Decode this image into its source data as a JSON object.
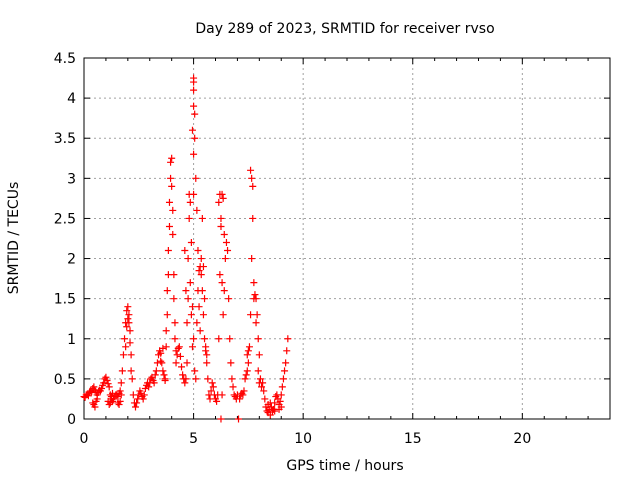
{
  "chart_data": {
    "type": "scatter",
    "title": "Day 289 of 2023, SRMTID for receiver rvso",
    "xlabel": "GPS time / hours",
    "ylabel": "SRMTID / TECUs",
    "xlim": [
      0,
      24
    ],
    "ylim": [
      0,
      4.5
    ],
    "xticks": [
      0,
      5,
      10,
      15,
      20
    ],
    "xtick_labels": [
      "0",
      "5",
      "10",
      "15",
      "20"
    ],
    "yticks": [
      0,
      0.5,
      1,
      1.5,
      2,
      2.5,
      3,
      3.5,
      4,
      4.5
    ],
    "ytick_labels": [
      "0",
      "0.5",
      "1",
      "1.5",
      "2",
      "2.5",
      "3",
      "3.5",
      "4",
      "4.5"
    ],
    "grid": true,
    "marker": "plus",
    "marker_color": "#ff0000",
    "series": [
      {
        "points": [
          [
            0.0,
            0.28
          ],
          [
            0.05,
            0.27
          ],
          [
            0.1,
            0.3
          ],
          [
            0.15,
            0.31
          ],
          [
            0.2,
            0.29
          ],
          [
            0.25,
            0.33
          ],
          [
            0.3,
            0.35
          ],
          [
            0.35,
            0.34
          ],
          [
            0.4,
            0.38
          ],
          [
            0.45,
            0.4
          ],
          [
            0.5,
            0.36
          ],
          [
            0.55,
            0.33
          ],
          [
            0.6,
            0.3
          ],
          [
            0.65,
            0.33
          ],
          [
            0.7,
            0.36
          ],
          [
            0.75,
            0.35
          ],
          [
            0.8,
            0.38
          ],
          [
            0.85,
            0.42
          ],
          [
            0.9,
            0.45
          ],
          [
            0.95,
            0.5
          ],
          [
            1.0,
            0.52
          ],
          [
            1.05,
            0.48
          ],
          [
            1.1,
            0.44
          ],
          [
            1.15,
            0.4
          ],
          [
            1.2,
            0.3
          ],
          [
            1.25,
            0.25
          ],
          [
            1.3,
            0.22
          ],
          [
            1.35,
            0.25
          ],
          [
            1.4,
            0.28
          ],
          [
            1.45,
            0.3
          ],
          [
            0.4,
            0.2
          ],
          [
            0.45,
            0.18
          ],
          [
            0.5,
            0.15
          ],
          [
            0.55,
            0.22
          ],
          [
            0.6,
            0.25
          ],
          [
            1.1,
            0.22
          ],
          [
            1.15,
            0.18
          ],
          [
            1.2,
            0.2
          ],
          [
            1.25,
            0.28
          ],
          [
            1.3,
            0.32
          ],
          [
            1.5,
            0.3
          ],
          [
            1.55,
            0.28
          ],
          [
            1.6,
            0.32
          ],
          [
            1.65,
            0.35
          ],
          [
            1.7,
            0.45
          ],
          [
            1.75,
            0.6
          ],
          [
            1.8,
            0.8
          ],
          [
            1.85,
            1.0
          ],
          [
            1.9,
            1.2
          ],
          [
            1.95,
            1.35
          ],
          [
            2.0,
            1.4
          ],
          [
            2.05,
            1.3
          ],
          [
            2.1,
            1.1
          ],
          [
            2.15,
            0.8
          ],
          [
            2.2,
            0.5
          ],
          [
            2.25,
            0.3
          ],
          [
            2.3,
            0.2
          ],
          [
            2.35,
            0.15
          ],
          [
            2.4,
            0.2
          ],
          [
            2.45,
            0.25
          ],
          [
            1.55,
            0.2
          ],
          [
            1.6,
            0.18
          ],
          [
            1.65,
            0.22
          ],
          [
            1.7,
            0.3
          ],
          [
            2.0,
            1.25
          ],
          [
            1.95,
            1.15
          ],
          [
            2.05,
            1.2
          ],
          [
            1.9,
            0.9
          ],
          [
            2.1,
            0.95
          ],
          [
            2.15,
            0.6
          ],
          [
            2.5,
            0.3
          ],
          [
            2.55,
            0.35
          ],
          [
            2.6,
            0.32
          ],
          [
            2.65,
            0.28
          ],
          [
            2.7,
            0.25
          ],
          [
            2.75,
            0.3
          ],
          [
            2.8,
            0.38
          ],
          [
            2.85,
            0.42
          ],
          [
            2.9,
            0.45
          ],
          [
            2.95,
            0.4
          ],
          [
            3.0,
            0.45
          ],
          [
            3.05,
            0.5
          ],
          [
            3.1,
            0.52
          ],
          [
            3.15,
            0.48
          ],
          [
            3.2,
            0.45
          ],
          [
            3.25,
            0.55
          ],
          [
            3.3,
            0.6
          ],
          [
            3.35,
            0.7
          ],
          [
            3.4,
            0.8
          ],
          [
            3.45,
            0.85
          ],
          [
            3.5,
            0.82
          ],
          [
            3.55,
            0.7
          ],
          [
            3.6,
            0.6
          ],
          [
            3.65,
            0.55
          ],
          [
            3.7,
            0.5
          ],
          [
            3.75,
            0.9
          ],
          [
            3.8,
            1.3
          ],
          [
            3.85,
            1.8
          ],
          [
            3.9,
            2.4
          ],
          [
            3.95,
            3.0
          ],
          [
            3.6,
            0.88
          ],
          [
            3.5,
            0.72
          ],
          [
            3.7,
            0.48
          ],
          [
            3.75,
            1.1
          ],
          [
            3.8,
            1.6
          ],
          [
            3.85,
            2.1
          ],
          [
            3.9,
            2.7
          ],
          [
            3.95,
            3.2
          ],
          [
            4.0,
            3.25
          ],
          [
            4.05,
            2.6
          ],
          [
            4.1,
            1.8
          ],
          [
            4.15,
            1.2
          ],
          [
            4.2,
            0.85
          ],
          [
            4.25,
            0.8
          ],
          [
            4.3,
            0.88
          ],
          [
            4.35,
            0.9
          ],
          [
            4.4,
            0.78
          ],
          [
            4.45,
            0.65
          ],
          [
            4.5,
            0.55
          ],
          [
            4.55,
            0.5
          ],
          [
            4.0,
            2.9
          ],
          [
            4.05,
            2.3
          ],
          [
            4.1,
            1.5
          ],
          [
            4.15,
            1.0
          ],
          [
            4.2,
            0.7
          ],
          [
            4.6,
            0.45
          ],
          [
            4.65,
            0.5
          ],
          [
            4.7,
            0.7
          ],
          [
            4.75,
            1.5
          ],
          [
            4.8,
            2.5
          ],
          [
            4.6,
            2.1
          ],
          [
            4.65,
            1.6
          ],
          [
            4.7,
            1.2
          ],
          [
            4.75,
            2.0
          ],
          [
            4.8,
            2.8
          ],
          [
            4.85,
            2.7
          ],
          [
            4.9,
            2.2
          ],
          [
            4.85,
            1.7
          ],
          [
            4.9,
            1.3
          ],
          [
            4.95,
            0.9
          ],
          [
            5.0,
            2.8
          ],
          [
            5.0,
            3.3
          ],
          [
            5.0,
            3.9
          ],
          [
            5.0,
            4.2
          ],
          [
            5.0,
            4.1
          ],
          [
            4.95,
            3.6
          ],
          [
            5.05,
            3.5
          ],
          [
            5.0,
            4.25
          ],
          [
            5.05,
            3.8
          ],
          [
            5.1,
            3.0
          ],
          [
            4.95,
            1.4
          ],
          [
            5.0,
            1.0
          ],
          [
            5.05,
            0.6
          ],
          [
            5.1,
            0.5
          ],
          [
            5.15,
            1.2
          ],
          [
            5.2,
            1.6
          ],
          [
            5.25,
            1.85
          ],
          [
            5.3,
            1.9
          ],
          [
            5.35,
            1.8
          ],
          [
            5.4,
            1.6
          ],
          [
            5.45,
            1.3
          ],
          [
            5.5,
            1.0
          ],
          [
            5.55,
            0.85
          ],
          [
            5.6,
            0.8
          ],
          [
            5.65,
            0.5
          ],
          [
            5.7,
            0.3
          ],
          [
            5.75,
            0.25
          ],
          [
            5.8,
            0.35
          ],
          [
            5.85,
            0.45
          ],
          [
            5.9,
            0.4
          ],
          [
            5.15,
            2.6
          ],
          [
            5.2,
            2.1
          ],
          [
            5.25,
            1.4
          ],
          [
            5.3,
            1.1
          ],
          [
            5.35,
            2.0
          ],
          [
            5.4,
            2.5
          ],
          [
            5.45,
            1.9
          ],
          [
            5.5,
            1.5
          ],
          [
            5.55,
            0.9
          ],
          [
            5.6,
            0.7
          ],
          [
            5.95,
            0.3
          ],
          [
            6.0,
            0.25
          ],
          [
            6.05,
            0.22
          ],
          [
            6.1,
            0.3
          ],
          [
            6.15,
            1.0
          ],
          [
            6.2,
            1.8
          ],
          [
            6.25,
            2.5
          ],
          [
            6.3,
            2.8
          ],
          [
            6.35,
            2.75
          ],
          [
            6.4,
            2.3
          ],
          [
            6.15,
            2.7
          ],
          [
            6.2,
            2.8
          ],
          [
            6.25,
            2.4
          ],
          [
            6.3,
            1.7
          ],
          [
            6.35,
            1.3
          ],
          [
            6.4,
            1.6
          ],
          [
            6.45,
            2.0
          ],
          [
            6.5,
            2.2
          ],
          [
            6.55,
            2.1
          ],
          [
            6.6,
            1.5
          ],
          [
            6.25,
            0.0
          ],
          [
            6.3,
            0.3
          ],
          [
            6.65,
            1.0
          ],
          [
            6.7,
            0.7
          ],
          [
            6.75,
            0.5
          ],
          [
            6.8,
            0.4
          ],
          [
            6.85,
            0.3
          ],
          [
            6.9,
            0.28
          ],
          [
            6.95,
            0.25
          ],
          [
            7.0,
            0.3
          ],
          [
            7.05,
            0.0
          ],
          [
            7.1,
            0.25
          ],
          [
            7.15,
            0.3
          ],
          [
            7.2,
            0.32
          ],
          [
            7.25,
            0.3
          ],
          [
            7.3,
            0.35
          ],
          [
            7.35,
            0.5
          ],
          [
            7.4,
            0.55
          ],
          [
            7.45,
            0.6
          ],
          [
            7.5,
            0.7
          ],
          [
            7.45,
            0.8
          ],
          [
            7.5,
            0.85
          ],
          [
            7.55,
            0.9
          ],
          [
            7.6,
            1.3
          ],
          [
            7.65,
            2.0
          ],
          [
            7.7,
            2.5
          ],
          [
            7.65,
            3.0
          ],
          [
            7.6,
            3.1
          ],
          [
            7.7,
            2.9
          ],
          [
            7.75,
            1.7
          ],
          [
            7.8,
            1.55
          ],
          [
            7.85,
            1.5
          ],
          [
            7.9,
            1.3
          ],
          [
            7.95,
            1.0
          ],
          [
            8.0,
            0.8
          ],
          [
            8.05,
            0.5
          ],
          [
            8.1,
            0.4
          ],
          [
            8.15,
            0.45
          ],
          [
            8.2,
            0.35
          ],
          [
            8.25,
            0.25
          ],
          [
            7.75,
            1.5
          ],
          [
            7.85,
            1.2
          ],
          [
            7.95,
            0.6
          ],
          [
            8.0,
            0.45
          ],
          [
            8.3,
            0.15
          ],
          [
            8.35,
            0.1
          ],
          [
            8.4,
            0.18
          ],
          [
            8.45,
            0.12
          ],
          [
            8.5,
            0.2
          ],
          [
            8.55,
            0.15
          ],
          [
            8.6,
            0.1
          ],
          [
            8.65,
            0.12
          ],
          [
            8.7,
            0.2
          ],
          [
            8.75,
            0.28
          ],
          [
            8.8,
            0.3
          ],
          [
            8.85,
            0.25
          ],
          [
            8.9,
            0.18
          ],
          [
            8.95,
            0.22
          ],
          [
            9.0,
            0.3
          ],
          [
            9.05,
            0.4
          ],
          [
            9.1,
            0.5
          ],
          [
            9.15,
            0.6
          ],
          [
            9.2,
            0.7
          ],
          [
            9.25,
            0.85
          ],
          [
            9.3,
            1.0
          ],
          [
            8.4,
            0.08
          ],
          [
            8.5,
            0.05
          ],
          [
            8.7,
            0.1
          ],
          [
            8.9,
            0.12
          ],
          [
            9.0,
            0.15
          ]
        ]
      }
    ]
  }
}
